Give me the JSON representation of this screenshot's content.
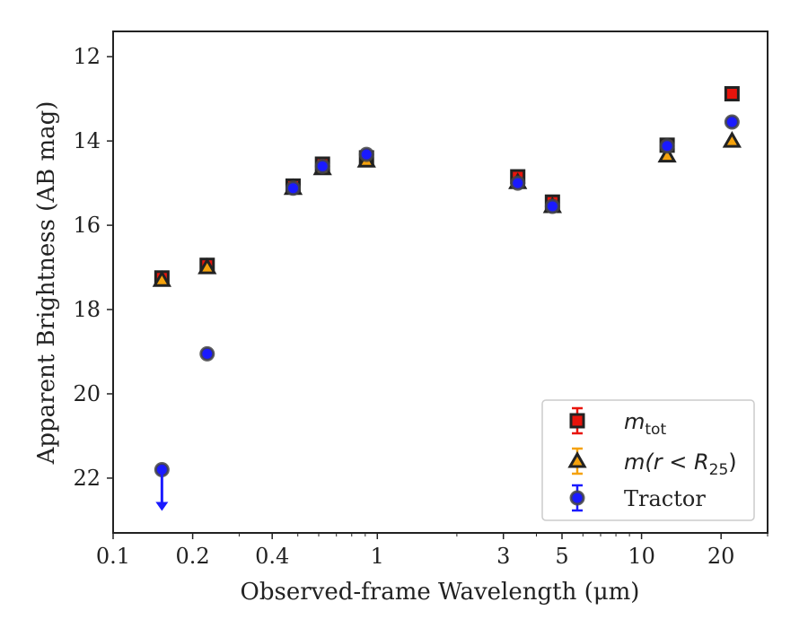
{
  "chart_data": {
    "type": "scatter",
    "xlabel": "Observed-frame Wavelength (μm)",
    "ylabel": "Apparent Brightness (AB mag)",
    "x_scale": "log",
    "xlim": [
      0.1,
      30
    ],
    "ylim": [
      23.3,
      11.4
    ],
    "y_inverted": true,
    "x_ticks": [
      {
        "value": 0.1,
        "label": "0.1"
      },
      {
        "value": 0.2,
        "label": "0.2"
      },
      {
        "value": 0.4,
        "label": "0.4"
      },
      {
        "value": 1,
        "label": "1"
      },
      {
        "value": 3,
        "label": "3"
      },
      {
        "value": 5,
        "label": "5"
      },
      {
        "value": 10,
        "label": "10"
      },
      {
        "value": 20,
        "label": "20"
      }
    ],
    "y_ticks": [
      {
        "value": 12,
        "label": "12"
      },
      {
        "value": 14,
        "label": "14"
      },
      {
        "value": 16,
        "label": "16"
      },
      {
        "value": 18,
        "label": "18"
      },
      {
        "value": 20,
        "label": "20"
      },
      {
        "value": 22,
        "label": "22"
      }
    ],
    "grid": false,
    "legend_position": "bottom-right",
    "series": [
      {
        "name": "m_tot",
        "legend_main": "m",
        "legend_sub": "tot",
        "marker": "square",
        "color": "#e8140c",
        "edge": "#222222",
        "points": [
          {
            "x": 0.153,
            "y": 17.25
          },
          {
            "x": 0.227,
            "y": 16.95
          },
          {
            "x": 0.48,
            "y": 15.07
          },
          {
            "x": 0.62,
            "y": 14.55
          },
          {
            "x": 0.91,
            "y": 14.4
          },
          {
            "x": 3.4,
            "y": 14.85
          },
          {
            "x": 4.6,
            "y": 15.45
          },
          {
            "x": 12.5,
            "y": 14.1
          },
          {
            "x": 22.0,
            "y": 12.88
          }
        ]
      },
      {
        "name": "m(r < R_25)",
        "legend_main": "m(r < R",
        "legend_sub": "25",
        "legend_close": ")",
        "marker": "triangle",
        "color": "#f5a20c",
        "edge": "#222222",
        "points": [
          {
            "x": 0.153,
            "y": 17.3
          },
          {
            "x": 0.227,
            "y": 17.0
          },
          {
            "x": 0.48,
            "y": 15.12
          },
          {
            "x": 0.62,
            "y": 14.65
          },
          {
            "x": 0.91,
            "y": 14.47
          },
          {
            "x": 3.4,
            "y": 14.98
          },
          {
            "x": 4.6,
            "y": 15.55
          },
          {
            "x": 12.5,
            "y": 14.35
          },
          {
            "x": 22.0,
            "y": 14.0
          }
        ]
      },
      {
        "name": "Tractor",
        "legend_main": "Tractor",
        "marker": "circle",
        "color": "#1a1aff",
        "edge": "#444444",
        "points": [
          {
            "x": 0.153,
            "y": 21.8,
            "upper_limit": true
          },
          {
            "x": 0.227,
            "y": 19.05
          },
          {
            "x": 0.48,
            "y": 15.12
          },
          {
            "x": 0.62,
            "y": 14.6
          },
          {
            "x": 0.91,
            "y": 14.32
          },
          {
            "x": 3.4,
            "y": 15.0
          },
          {
            "x": 4.6,
            "y": 15.55
          },
          {
            "x": 12.5,
            "y": 14.12
          },
          {
            "x": 22.0,
            "y": 13.55
          }
        ]
      }
    ]
  }
}
